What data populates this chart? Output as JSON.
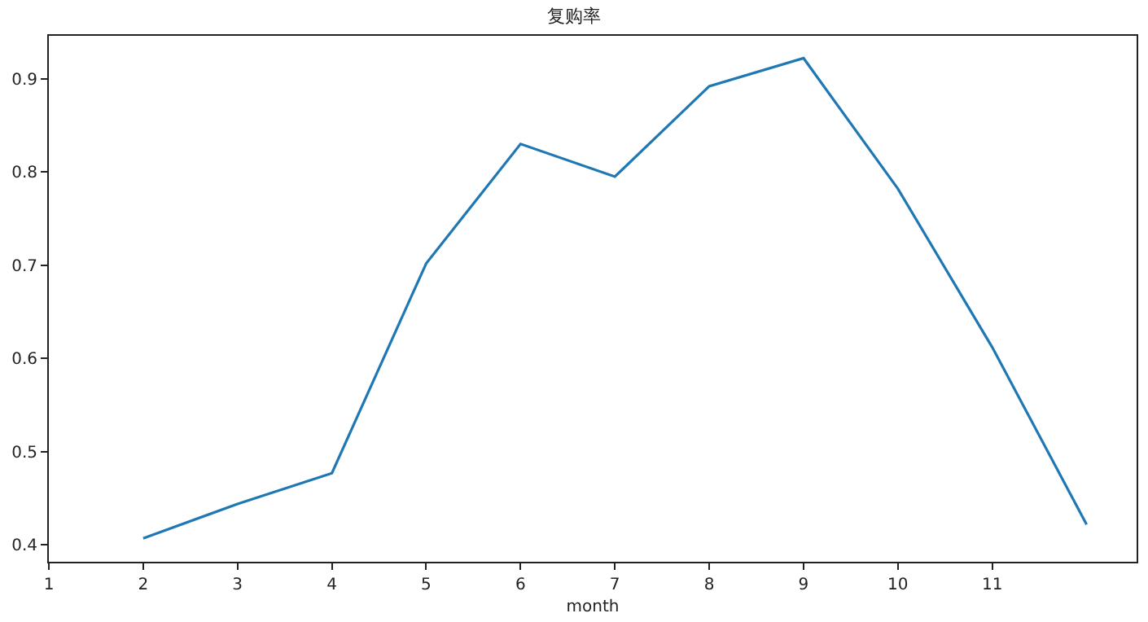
{
  "chart_data": {
    "type": "line",
    "title": "复购率",
    "xlabel": "month",
    "x": [
      2,
      3,
      4,
      5,
      6,
      7,
      8,
      9,
      10,
      11,
      12
    ],
    "series": [
      {
        "color": "#1f77b4",
        "values": [
          0.407,
          0.444,
          0.477,
          0.702,
          0.83,
          0.795,
          0.892,
          0.922,
          0.782,
          0.612,
          0.422
        ]
      }
    ],
    "xlim": [
      1,
      12.53
    ],
    "ylim": [
      0.382,
      0.946
    ],
    "xticks": [
      1,
      2,
      3,
      4,
      5,
      6,
      7,
      8,
      9,
      10,
      11
    ],
    "yticks": [
      0.4,
      0.5,
      0.6,
      0.7,
      0.8,
      0.9
    ],
    "grid": false,
    "marker": "none",
    "line_style": "solid"
  }
}
